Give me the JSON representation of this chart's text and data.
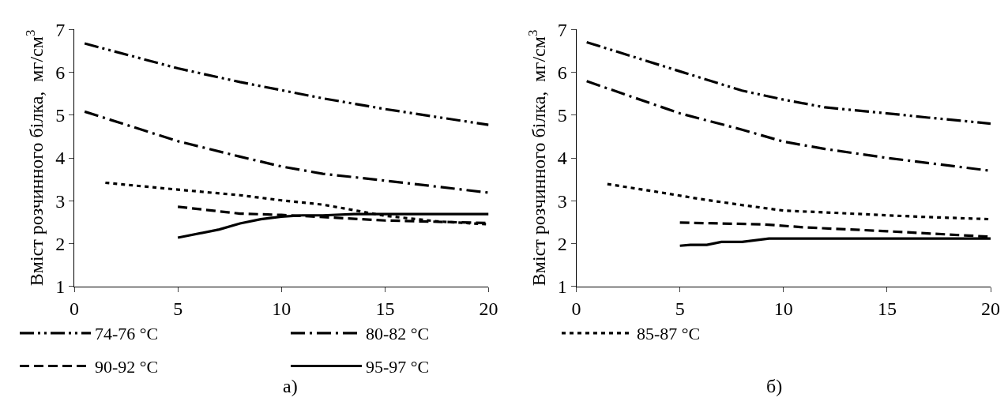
{
  "chart_data": [
    {
      "type": "line",
      "ylabel": "Вміст розчинного білка,  мг/см$^{3}$",
      "xlim": [
        0,
        20
      ],
      "xticks": [
        0,
        5,
        10,
        15,
        20
      ],
      "ylim": [
        1,
        7
      ],
      "yticks": [
        1,
        2,
        3,
        4,
        5,
        6,
        7
      ],
      "legend": "bottom",
      "marker": "none",
      "annotations": [
        "а)"
      ],
      "series": [
        {
          "name": "74-76 °C",
          "color": "#000000",
          "line_style": "dashdotdot",
          "x": [
            0.5,
            5,
            8,
            10,
            12,
            15,
            20
          ],
          "values": [
            6.67,
            6.09,
            5.77,
            5.58,
            5.39,
            5.14,
            4.77
          ]
        },
        {
          "name": "80-82 °C",
          "color": "#000000",
          "line_style": "dashdot",
          "x": [
            0.5,
            5,
            8,
            10,
            12,
            15,
            20
          ],
          "values": [
            5.08,
            4.39,
            4.03,
            3.8,
            3.63,
            3.47,
            3.19
          ]
        },
        {
          "name": "85-87 °C",
          "color": "#000000",
          "line_style": "dotted",
          "x": [
            1.5,
            5,
            8,
            10,
            12,
            15,
            17.5,
            20
          ],
          "values": [
            3.42,
            3.26,
            3.13,
            3.01,
            2.91,
            2.65,
            2.52,
            2.45
          ]
        },
        {
          "name": "90-92 °C",
          "color": "#000000",
          "line_style": "dashed",
          "x": [
            5,
            8,
            10,
            12,
            15,
            20
          ],
          "values": [
            2.86,
            2.7,
            2.67,
            2.62,
            2.54,
            2.48
          ]
        },
        {
          "name": "95-97 °C",
          "color": "#000000",
          "line_style": "solid",
          "x": [
            5,
            7,
            8,
            9,
            10,
            11,
            12,
            13.5,
            20
          ],
          "values": [
            2.14,
            2.33,
            2.47,
            2.57,
            2.63,
            2.66,
            2.66,
            2.69,
            2.69
          ]
        }
      ]
    },
    {
      "type": "line",
      "ylabel": "Вміст розчинного білка,  мг/см$^{3}$",
      "xlim": [
        0,
        20
      ],
      "xticks": [
        0,
        5,
        10,
        15,
        20
      ],
      "ylim": [
        1,
        7
      ],
      "yticks": [
        1,
        2,
        3,
        4,
        5,
        6,
        7
      ],
      "legend": "bottom",
      "marker": "none",
      "annotations": [
        "б)"
      ],
      "series": [
        {
          "name": "74-76 °C",
          "color": "#000000",
          "line_style": "dashdotdot",
          "x": [
            0.5,
            5,
            8,
            10,
            12,
            15,
            17,
            20
          ],
          "values": [
            6.7,
            6.02,
            5.57,
            5.36,
            5.18,
            5.04,
            4.94,
            4.8
          ]
        },
        {
          "name": "80-82 °C",
          "color": "#000000",
          "line_style": "dashdot",
          "x": [
            0.5,
            5,
            8,
            10,
            12,
            15,
            20
          ],
          "values": [
            5.79,
            5.04,
            4.66,
            4.38,
            4.21,
            4.0,
            3.7
          ]
        },
        {
          "name": "85-87 °C",
          "color": "#000000",
          "line_style": "dotted",
          "x": [
            1.5,
            4,
            6,
            8,
            10,
            12,
            15,
            17,
            20
          ],
          "values": [
            3.39,
            3.2,
            3.04,
            2.9,
            2.77,
            2.73,
            2.66,
            2.62,
            2.57
          ]
        },
        {
          "name": "90-92 °C",
          "color": "#000000",
          "line_style": "dashed",
          "x": [
            5,
            9,
            11,
            15,
            20
          ],
          "values": [
            2.49,
            2.45,
            2.38,
            2.29,
            2.16
          ]
        },
        {
          "name": "95-97 °C",
          "color": "#000000",
          "line_style": "solid",
          "x": [
            5,
            5.5,
            6.3,
            7,
            8,
            9.3,
            20
          ],
          "values": [
            1.95,
            1.97,
            1.97,
            2.04,
            2.04,
            2.12,
            2.12
          ]
        }
      ]
    }
  ]
}
